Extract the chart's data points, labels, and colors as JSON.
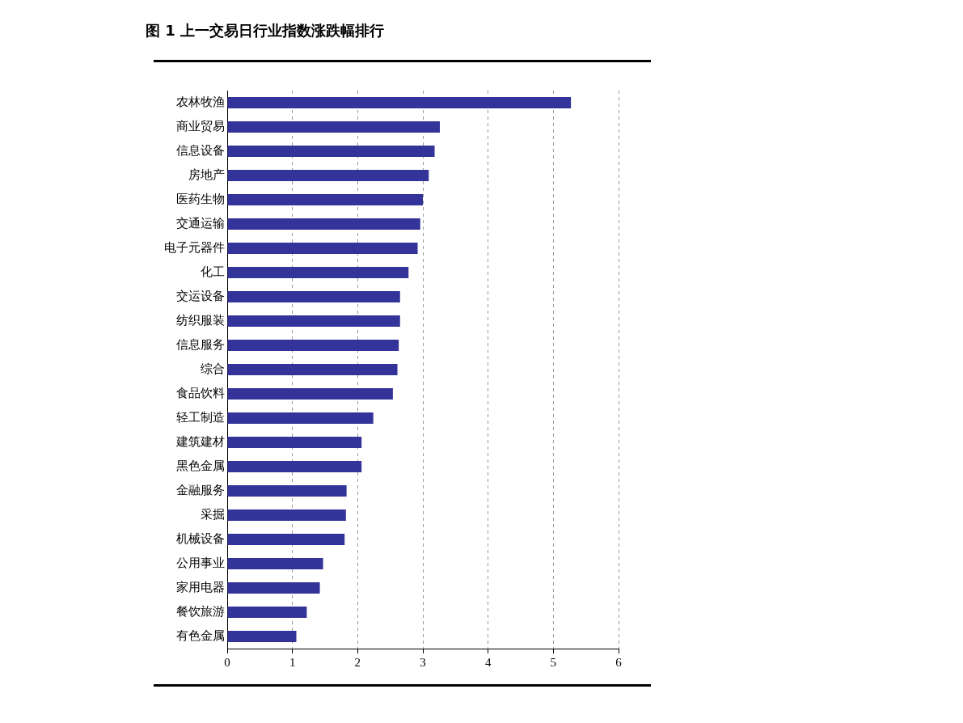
{
  "chart_data": {
    "type": "bar",
    "orientation": "horizontal",
    "title": "图 1  上一交易日行业指数涨跌幅排行",
    "categories": [
      "农林牧渔",
      "商业贸易",
      "信息设备",
      "房地产",
      "医药生物",
      "交通运输",
      "电子元器件",
      "化工",
      "交运设备",
      "纺织服装",
      "信息服务",
      "综合",
      "食品饮料",
      "轻工制造",
      "建筑建材",
      "黑色金属",
      "金融服务",
      "采掘",
      "机械设备",
      "公用事业",
      "家用电器",
      "餐饮旅游",
      "有色金属"
    ],
    "values": [
      5.27,
      3.26,
      3.18,
      3.09,
      3.0,
      2.96,
      2.92,
      2.78,
      2.65,
      2.65,
      2.63,
      2.61,
      2.54,
      2.24,
      2.06,
      2.06,
      1.83,
      1.82,
      1.8,
      1.47,
      1.42,
      1.22,
      1.06
    ],
    "color": "#333399",
    "xlim": [
      0,
      6
    ],
    "xticks": [
      0,
      1,
      2,
      3,
      4,
      5,
      6
    ],
    "grid": "x",
    "legend": false
  }
}
